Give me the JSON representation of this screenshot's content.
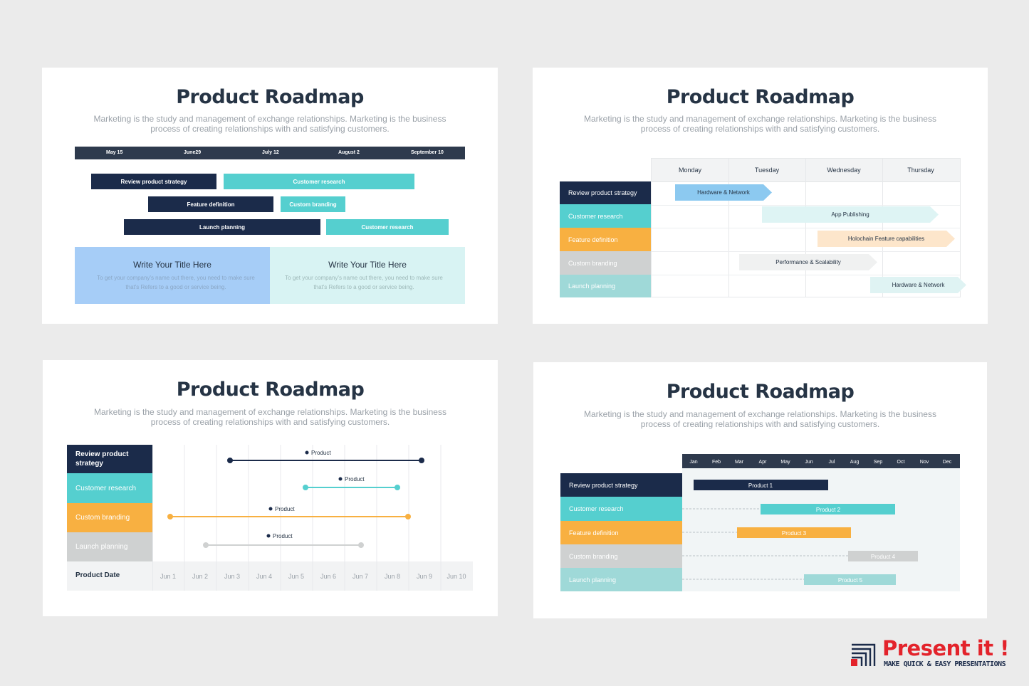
{
  "slide1": {
    "title": "Product Roadmap",
    "subtitle": "Marketing is the study and management of exchange relationships. Marketing is the business process of creating relationships with and satisfying customers.",
    "dates": [
      "May 15",
      "June29",
      "July 12",
      "August 2",
      "September 10"
    ],
    "bars": [
      {
        "label": "Review product strategy",
        "color": "navy"
      },
      {
        "label": "Customer research",
        "color": "teal"
      },
      {
        "label": "Feature definition",
        "color": "navy"
      },
      {
        "label": "Custom branding",
        "color": "teal"
      },
      {
        "label": "Launch planning",
        "color": "navy"
      },
      {
        "label": "Customer research",
        "color": "teal"
      }
    ],
    "boxes": [
      {
        "heading": "Write Your Title Here",
        "text": "To get your company's name out there, you need to make sure that's Refers to a good or service being."
      },
      {
        "heading": "Write Your Title Here",
        "text": "To get your company's name out there, you need to make sure that's Refers to a good or service being."
      }
    ]
  },
  "slide2": {
    "title": "Product Roadmap",
    "subtitle": "Marketing is the study and management of exchange relationships. Marketing is the business process of creating relationships with and satisfying customers.",
    "days": [
      "Monday",
      "Tuesday",
      "Wednesday",
      "Thursday"
    ],
    "rows": [
      "Review product strategy",
      "Customer research",
      "Feature definition",
      "Custom branding",
      "Launch planning"
    ],
    "tasks": [
      "Hardware & Network",
      "App Publishing",
      "Holochain Feature capabilities",
      "Performance & Scalability",
      "Hardware & Network"
    ]
  },
  "slide3": {
    "title": "Product Roadmap",
    "subtitle": "Marketing is the study and management of exchange relationships. Marketing is the business process of creating relationships with and satisfying customers.",
    "rows": [
      "Review product strategy",
      "Customer research",
      "Custom branding",
      "Launch planning"
    ],
    "date_label": "Product Date",
    "dates": [
      "Jun 1",
      "Jun 2",
      "Jun 3",
      "Jun 4",
      "Jun 5",
      "Jun 6",
      "Jun 7",
      "Jun 8",
      "Jun 9",
      "Jun 10"
    ],
    "markers": [
      "Product",
      "Product",
      "Product",
      "Product"
    ]
  },
  "slide4": {
    "title": "Product Roadmap",
    "subtitle": "Marketing is the study and management of exchange relationships. Marketing is the business process of creating relationships with and satisfying customers.",
    "months": [
      "Jan",
      "Feb",
      "Mar",
      "Apr",
      "May",
      "Jun",
      "Jul",
      "Aug",
      "Sep",
      "Oct",
      "Nov",
      "Dec"
    ],
    "rows": [
      "Review product strategy",
      "Customer research",
      "Feature definition",
      "Custom branding",
      "Launch planning"
    ],
    "products": [
      "Product 1",
      "Product 2",
      "Product 3",
      "Product 4",
      "Product 5"
    ]
  },
  "brand": {
    "name": "Present it !",
    "tagline": "MAKE QUICK & EASY PRESENTATIONS",
    "red": "#e3232b",
    "navy": "#1b2b4a"
  },
  "colors": {
    "navy": "#1b2b4a",
    "teal": "#55cfcf",
    "orange": "#f8b041",
    "gray": "#cfd1d1",
    "light_teal": "#9fd9d8",
    "light_blue": "#a6cdf7",
    "pale_teal": "#d8f3f3"
  }
}
